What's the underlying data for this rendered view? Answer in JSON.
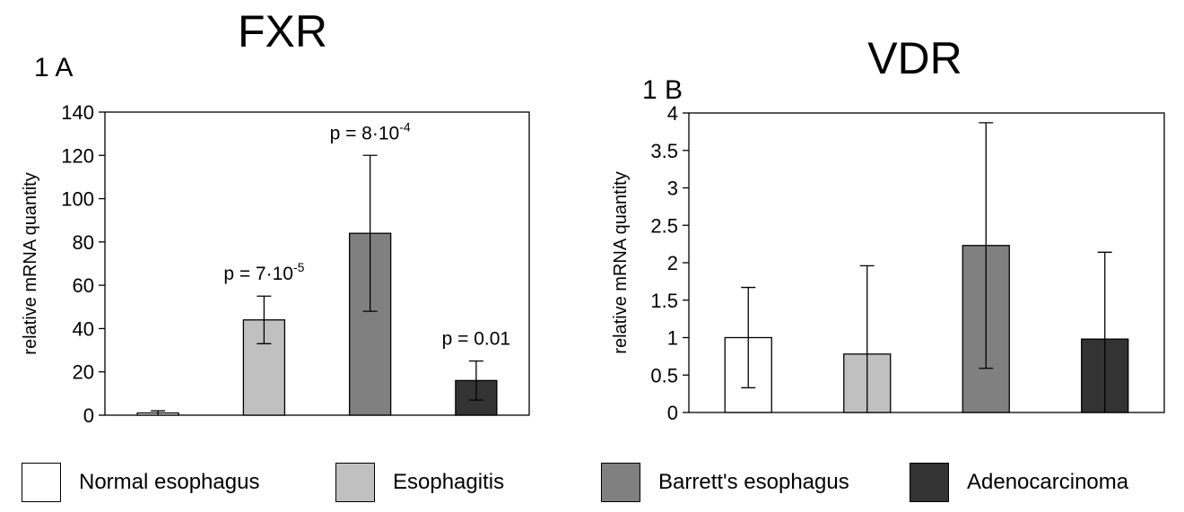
{
  "colors": {
    "normal": "#ffffff",
    "esophagitis": "#c0c0c0",
    "barretts": "#808080",
    "adeno": "#333333",
    "axis": "#000000"
  },
  "legend": [
    {
      "label": "Normal esophagus",
      "color": "#ffffff"
    },
    {
      "label": "Esophagitis",
      "color": "#c0c0c0"
    },
    {
      "label": "Barrett's esophagus",
      "color": "#808080"
    },
    {
      "label": "Adenocarcinoma",
      "color": "#333333"
    }
  ],
  "chart_data": [
    {
      "type": "bar",
      "title": "FXR",
      "panel_label": "1 A",
      "ylabel": "relative mRNA quantity",
      "ylim": [
        0,
        140
      ],
      "yticks": [
        "0",
        "20",
        "40",
        "60",
        "80",
        "100",
        "120",
        "140"
      ],
      "categories": [
        "Normal esophagus",
        "Esophagitis",
        "Barrett's esophagus",
        "Adenocarcinoma"
      ],
      "values": [
        1,
        44,
        84,
        16
      ],
      "errors": [
        1,
        11,
        36,
        9
      ],
      "annotations": [
        "",
        "p = 7·10-5",
        "p = 8·10-4",
        "p = 0.01"
      ],
      "annotation_parts": [
        {
          "base": "",
          "exp": ""
        },
        {
          "base": "p = 7·10",
          "exp": "-5"
        },
        {
          "base": "p = 8·10",
          "exp": "-4"
        },
        {
          "base": "p = 0.01",
          "exp": ""
        }
      ]
    },
    {
      "type": "bar",
      "title": "VDR",
      "panel_label": "1 B",
      "ylabel": "relative mRNA quantity",
      "ylim": [
        0,
        4
      ],
      "yticks": [
        "0",
        "0.5",
        "1",
        "1.5",
        "2",
        "2.5",
        "3",
        "3.5",
        "4"
      ],
      "categories": [
        "Normal esophagus",
        "Esophagitis",
        "Barrett's esophagus",
        "Adenocarcinoma"
      ],
      "values": [
        1.0,
        0.78,
        2.23,
        0.98
      ],
      "errors": [
        0.67,
        1.18,
        1.64,
        1.16
      ]
    }
  ]
}
